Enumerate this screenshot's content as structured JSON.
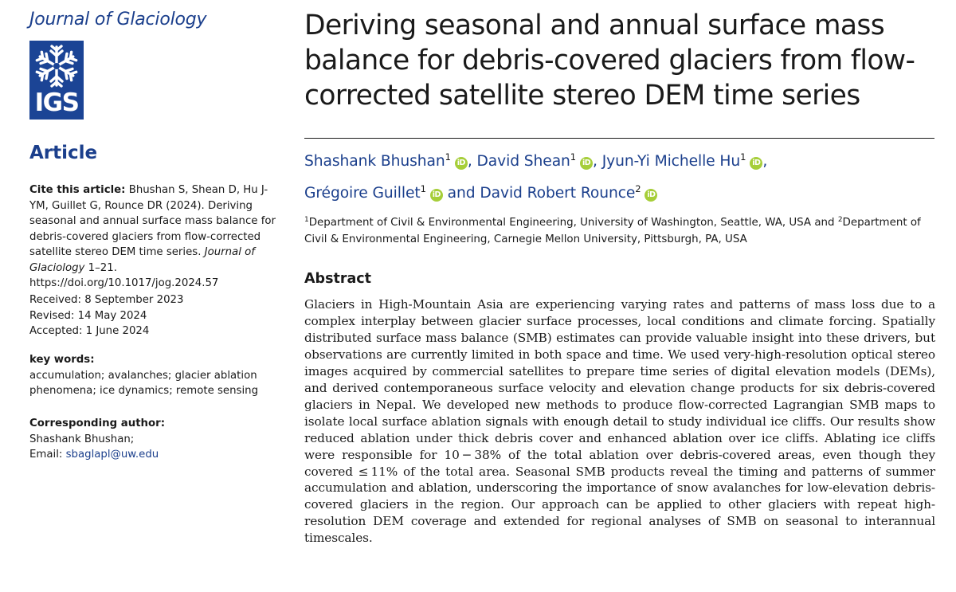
{
  "journal": {
    "name": "Journal of Glaciology",
    "logo_text": "IGS"
  },
  "sidebar": {
    "section": "Article",
    "cite": {
      "label": "Cite this article:",
      "text": "Bhushan S, Shean D, Hu J-YM, Guillet G, Rounce DR (2024). Deriving seasonal and annual surface mass balance for debris-covered glaciers from flow-corrected satellite stereo DEM time series.",
      "journal": "Journal of Glaciology",
      "pages_doi": "1–21. https://doi.org/10.1017/jog.2024.57"
    },
    "dates": {
      "received": "Received: 8 September 2023",
      "revised": "Revised: 14 May 2024",
      "accepted": "Accepted: 1 June 2024"
    },
    "keywords": {
      "label": "key words:",
      "text": "accumulation; avalanches; glacier ablation phenomena; ice dynamics; remote sensing"
    },
    "corresponding": {
      "label": "Corresponding author:",
      "name": "Shashank Bhushan;",
      "email_label": "Email:",
      "email": "sbaglapl@uw.edu"
    }
  },
  "paper": {
    "title": "Deriving seasonal and annual surface mass balance for debris-covered glaciers from flow-corrected satellite stereo DEM time series",
    "authors": [
      {
        "name": "Shashank Bhushan",
        "aff": "1",
        "sep": ","
      },
      {
        "name": "David Shean",
        "aff": "1",
        "sep": ","
      },
      {
        "name": "Jyun-Yi Michelle Hu",
        "aff": "1",
        "sep": ","
      },
      {
        "name": "Grégoire Guillet",
        "aff": "1",
        "sep": ""
      },
      {
        "name": "David Robert Rounce",
        "aff": "2",
        "sep": ""
      }
    ],
    "author_conjunction": "and",
    "orcid_label": "iD",
    "affiliations": [
      {
        "num": "1",
        "text": "Department of Civil & Environmental Engineering, University of Washington, Seattle, WA, USA and "
      },
      {
        "num": "2",
        "text": "Department of Civil & Environmental Engineering, Carnegie Mellon University, Pittsburgh, PA, USA"
      }
    ],
    "abstract_heading": "Abstract",
    "abstract": "Glaciers in High-Mountain Asia are experiencing varying rates and patterns of mass loss due to a complex interplay between glacier surface processes, local conditions and climate forcing. Spatially distributed surface mass balance (SMB) estimates can provide valuable insight into these drivers, but observations are currently limited in both space and time. We used very-high-resolution optical stereo images acquired by commercial satellites to prepare time series of digital elevation models (DEMs), and derived contemporaneous surface velocity and elevation change products for six debris-covered glaciers in Nepal. We developed new methods to produce flow-corrected Lagrangian SMB maps to isolate local surface ablation signals with enough detail to study individual ice cliffs. Our results show reduced ablation under thick debris cover and enhanced ablation over ice cliffs. Ablating ice cliffs were responsible for 10 − 38% of the total ablation over debris-covered areas, even though they covered ≤ 11% of the total area. Seasonal SMB products reveal the timing and patterns of summer accumulation and ablation, underscoring the importance of snow avalanches for low-elevation debris-covered glaciers in the region. Our approach can be applied to other glaciers with repeat high-resolution DEM coverage and extended for regional analyses of SMB on seasonal to interannual timescales."
  }
}
